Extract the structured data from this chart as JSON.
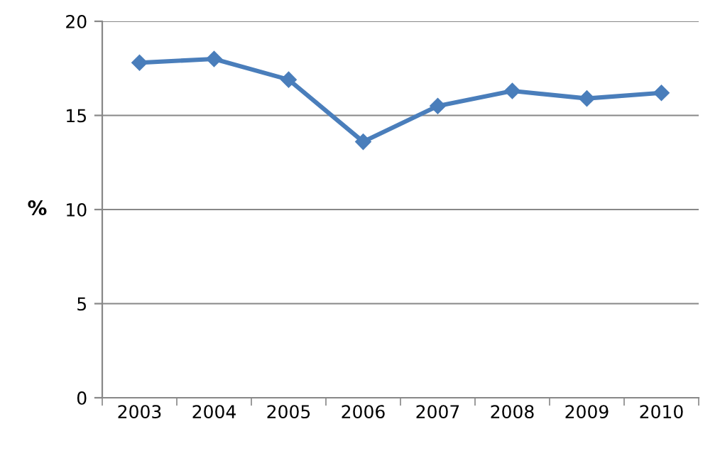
{
  "chart_data": {
    "type": "line",
    "ylabel": "%",
    "categories": [
      "2003",
      "2004",
      "2005",
      "2006",
      "2007",
      "2008",
      "2009",
      "2010"
    ],
    "series": [
      {
        "color": "#4a7ebb",
        "values": [
          17.8,
          18.0,
          16.9,
          13.6,
          15.5,
          16.3,
          15.9,
          16.2
        ]
      }
    ],
    "ylim": [
      0,
      20
    ],
    "yticks": [
      0,
      5,
      10,
      15,
      20
    ],
    "grid": "y",
    "marker": "diamond",
    "line_style": "solid"
  }
}
